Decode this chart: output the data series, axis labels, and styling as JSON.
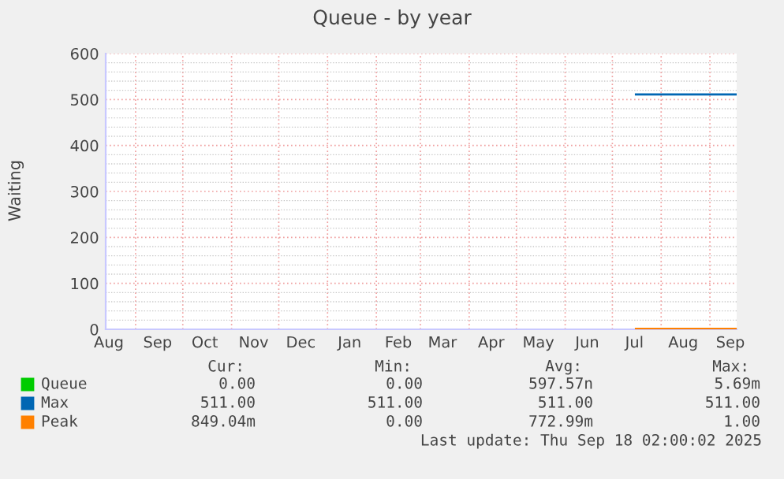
{
  "chart_data": {
    "type": "line",
    "title": "Queue - by year",
    "ylabel": "Waiting",
    "xlim": [
      "2024-08-13",
      "2025-09-18"
    ],
    "ylim": [
      0,
      600
    ],
    "xticks": [
      {
        "value": "2024-08-15",
        "label": "Aug"
      },
      {
        "value": "2024-09-01",
        "label": null
      },
      {
        "value": "2024-09-15",
        "label": "Sep"
      },
      {
        "value": "2024-10-01",
        "label": null
      },
      {
        "value": "2024-10-15",
        "label": "Oct"
      },
      {
        "value": "2024-11-01",
        "label": null
      },
      {
        "value": "2024-11-15",
        "label": "Nov"
      },
      {
        "value": "2024-12-01",
        "label": null
      },
      {
        "value": "2024-12-15",
        "label": "Dec"
      },
      {
        "value": "2025-01-01",
        "label": null
      },
      {
        "value": "2025-01-15",
        "label": "Jan"
      },
      {
        "value": "2025-02-01",
        "label": null
      },
      {
        "value": "2025-02-15",
        "label": "Feb"
      },
      {
        "value": "2025-03-01",
        "label": null
      },
      {
        "value": "2025-03-15",
        "label": "Mar"
      },
      {
        "value": "2025-04-01",
        "label": null
      },
      {
        "value": "2025-04-15",
        "label": "Apr"
      },
      {
        "value": "2025-05-01",
        "label": null
      },
      {
        "value": "2025-05-15",
        "label": "May"
      },
      {
        "value": "2025-06-01",
        "label": null
      },
      {
        "value": "2025-06-15",
        "label": "Jun"
      },
      {
        "value": "2025-07-01",
        "label": null
      },
      {
        "value": "2025-07-15",
        "label": "Jul"
      },
      {
        "value": "2025-08-01",
        "label": null
      },
      {
        "value": "2025-08-15",
        "label": "Aug"
      },
      {
        "value": "2025-09-01",
        "label": null
      },
      {
        "value": "2025-09-14",
        "label": "Sep"
      }
    ],
    "yticks": [
      0,
      {
        "value": 20,
        "label": null
      },
      {
        "value": 40,
        "label": null
      },
      {
        "value": 60,
        "label": null
      },
      {
        "value": 80,
        "label": null
      },
      100,
      {
        "value": 120,
        "label": null
      },
      {
        "value": 140,
        "label": null
      },
      {
        "value": 160,
        "label": null
      },
      {
        "value": 180,
        "label": null
      },
      200,
      {
        "value": 220,
        "label": null
      },
      {
        "value": 240,
        "label": null
      },
      {
        "value": 260,
        "label": null
      },
      {
        "value": 280,
        "label": null
      },
      300,
      {
        "value": 320,
        "label": null
      },
      {
        "value": 340,
        "label": null
      },
      {
        "value": 360,
        "label": null
      },
      {
        "value": 380,
        "label": null
      },
      400,
      {
        "value": 420,
        "label": null
      },
      {
        "value": 440,
        "label": null
      },
      {
        "value": 460,
        "label": null
      },
      {
        "value": 480,
        "label": null
      },
      500,
      {
        "value": 520,
        "label": null
      },
      {
        "value": 540,
        "label": null
      },
      {
        "value": 560,
        "label": null
      },
      {
        "value": 580,
        "label": null
      },
      600
    ],
    "grid": true,
    "legend": "bottom",
    "marker": "none",
    "line_style": "solid",
    "series": [
      {
        "name": "Queue",
        "color": "#00cc00"
      },
      {
        "name": "Max",
        "color": "#0066b3",
        "x": [
          "2025-07-16",
          "2025-09-18"
        ],
        "values": [
          511,
          511
        ]
      },
      {
        "name": "Peak",
        "color": "#ff8000",
        "x": [
          "2025-07-16",
          "2025-09-18"
        ],
        "values": [
          1,
          1
        ]
      }
    ],
    "annotations": [
      "Cur:",
      "Min:",
      "Avg:",
      "Max:",
      "0.00",
      "0.00",
      "597.57n",
      "5.69m",
      "511.00",
      "511.00",
      "511.00",
      "511.00",
      "849.04m",
      "0.00",
      "772.99m",
      "1.00",
      "Last update: Thu Sep 18 02:00:02 2025"
    ]
  }
}
